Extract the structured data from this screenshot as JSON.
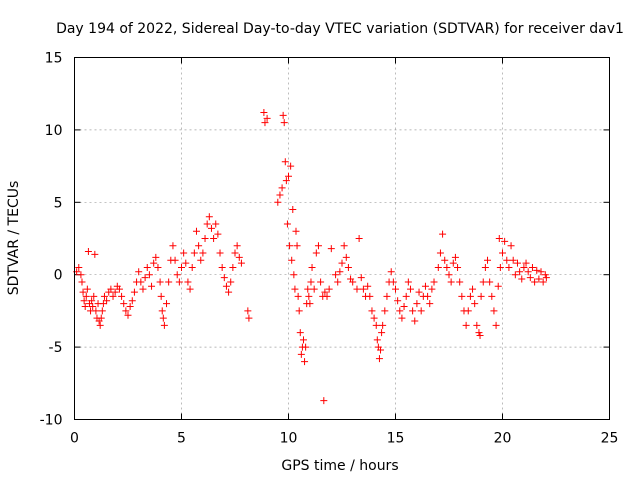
{
  "chart_data": {
    "type": "scatter",
    "title": "Day 194 of 2022, Sidereal Day-to-day VTEC variation (SDTVAR) for receiver dav1",
    "xlabel": "GPS time / hours",
    "ylabel": "SDTVAR / TECUs",
    "xlim": [
      0,
      25
    ],
    "ylim": [
      -10,
      15
    ],
    "xticks": [
      "0",
      "5",
      "10",
      "15",
      "20",
      "25"
    ],
    "yticks": [
      "-10",
      "-5",
      "0",
      "5",
      "10",
      "15"
    ],
    "grid": true,
    "marker": "+",
    "color": "#ff0000",
    "series": [
      {
        "name": "SDTVAR",
        "points": [
          [
            0.1,
            0.2
          ],
          [
            0.2,
            0.5
          ],
          [
            0.3,
            0.0
          ],
          [
            0.35,
            -0.5
          ],
          [
            0.4,
            -1.2
          ],
          [
            0.45,
            -1.8
          ],
          [
            0.5,
            -2.2
          ],
          [
            0.55,
            -1.5
          ],
          [
            0.6,
            -1.0
          ],
          [
            0.65,
            1.6
          ],
          [
            0.7,
            -2.0
          ],
          [
            0.75,
            -2.5
          ],
          [
            0.8,
            -1.8
          ],
          [
            0.85,
            -2.2
          ],
          [
            0.9,
            -1.5
          ],
          [
            0.95,
            1.4
          ],
          [
            1.0,
            -2.5
          ],
          [
            1.05,
            -3.0
          ],
          [
            1.1,
            -2.0
          ],
          [
            1.15,
            -3.2
          ],
          [
            1.2,
            -3.5
          ],
          [
            1.25,
            -3.0
          ],
          [
            1.3,
            -2.5
          ],
          [
            1.35,
            -2.0
          ],
          [
            1.4,
            -1.5
          ],
          [
            1.5,
            -1.8
          ],
          [
            1.6,
            -1.2
          ],
          [
            1.7,
            -1.0
          ],
          [
            1.8,
            -1.5
          ],
          [
            1.9,
            -1.2
          ],
          [
            2.0,
            -0.8
          ],
          [
            2.1,
            -1.0
          ],
          [
            2.2,
            -1.5
          ],
          [
            2.3,
            -2.0
          ],
          [
            2.4,
            -2.5
          ],
          [
            2.5,
            -2.8
          ],
          [
            2.6,
            -2.2
          ],
          [
            2.7,
            -1.8
          ],
          [
            2.8,
            -1.2
          ],
          [
            2.9,
            -0.5
          ],
          [
            3.0,
            0.2
          ],
          [
            3.1,
            -0.5
          ],
          [
            3.2,
            -1.0
          ],
          [
            3.3,
            -0.2
          ],
          [
            3.4,
            0.5
          ],
          [
            3.5,
            0.0
          ],
          [
            3.6,
            -0.8
          ],
          [
            3.7,
            0.8
          ],
          [
            3.8,
            1.2
          ],
          [
            3.9,
            0.5
          ],
          [
            4.0,
            -0.5
          ],
          [
            4.05,
            -1.5
          ],
          [
            4.1,
            -2.5
          ],
          [
            4.15,
            -3.0
          ],
          [
            4.2,
            -3.5
          ],
          [
            4.3,
            -2.0
          ],
          [
            4.4,
            -0.5
          ],
          [
            4.5,
            1.0
          ],
          [
            4.6,
            2.0
          ],
          [
            4.7,
            1.0
          ],
          [
            4.8,
            0.0
          ],
          [
            4.9,
            -0.5
          ],
          [
            5.0,
            0.5
          ],
          [
            5.1,
            1.5
          ],
          [
            5.2,
            0.8
          ],
          [
            5.3,
            -0.5
          ],
          [
            5.4,
            -1.0
          ],
          [
            5.5,
            0.5
          ],
          [
            5.6,
            1.5
          ],
          [
            5.7,
            3.0
          ],
          [
            5.8,
            2.0
          ],
          [
            5.9,
            1.0
          ],
          [
            6.0,
            1.5
          ],
          [
            6.1,
            2.5
          ],
          [
            6.2,
            3.5
          ],
          [
            6.3,
            4.0
          ],
          [
            6.4,
            3.2
          ],
          [
            6.5,
            2.5
          ],
          [
            6.6,
            3.5
          ],
          [
            6.7,
            2.8
          ],
          [
            6.8,
            1.5
          ],
          [
            6.9,
            0.5
          ],
          [
            7.0,
            -0.2
          ],
          [
            7.1,
            -0.8
          ],
          [
            7.2,
            -1.2
          ],
          [
            7.3,
            -0.5
          ],
          [
            7.4,
            0.5
          ],
          [
            7.5,
            1.5
          ],
          [
            7.6,
            2.0
          ],
          [
            7.7,
            1.2
          ],
          [
            7.8,
            0.8
          ],
          [
            8.1,
            -2.5
          ],
          [
            8.15,
            -3.0
          ],
          [
            8.85,
            11.2
          ],
          [
            8.9,
            10.5
          ],
          [
            9.0,
            10.8
          ],
          [
            9.5,
            5.0
          ],
          [
            9.6,
            5.5
          ],
          [
            9.7,
            6.0
          ],
          [
            9.75,
            11.0
          ],
          [
            9.8,
            10.5
          ],
          [
            9.85,
            7.8
          ],
          [
            9.9,
            6.5
          ],
          [
            9.95,
            3.5
          ],
          [
            10.0,
            6.8
          ],
          [
            10.05,
            2.0
          ],
          [
            10.1,
            7.5
          ],
          [
            10.15,
            1.0
          ],
          [
            10.2,
            4.5
          ],
          [
            10.25,
            0.0
          ],
          [
            10.3,
            -1.0
          ],
          [
            10.35,
            3.0
          ],
          [
            10.4,
            2.0
          ],
          [
            10.45,
            -1.5
          ],
          [
            10.5,
            -2.5
          ],
          [
            10.55,
            -4.0
          ],
          [
            10.6,
            -5.5
          ],
          [
            10.65,
            -5.0
          ],
          [
            10.7,
            -4.5
          ],
          [
            10.75,
            -6.0
          ],
          [
            10.8,
            -5.0
          ],
          [
            10.85,
            -2.0
          ],
          [
            10.9,
            -1.0
          ],
          [
            10.95,
            -1.5
          ],
          [
            11.0,
            -2.0
          ],
          [
            11.05,
            -0.5
          ],
          [
            11.1,
            0.5
          ],
          [
            11.2,
            -1.0
          ],
          [
            11.3,
            1.5
          ],
          [
            11.4,
            2.0
          ],
          [
            11.5,
            -0.5
          ],
          [
            11.6,
            -1.5
          ],
          [
            11.65,
            -8.7
          ],
          [
            11.7,
            -1.2
          ],
          [
            11.8,
            -1.5
          ],
          [
            11.9,
            -1.0
          ],
          [
            12.0,
            1.8
          ],
          [
            12.2,
            0.0
          ],
          [
            12.3,
            -0.5
          ],
          [
            12.4,
            0.2
          ],
          [
            12.5,
            0.8
          ],
          [
            12.6,
            2.0
          ],
          [
            12.7,
            1.2
          ],
          [
            12.8,
            0.5
          ],
          [
            12.9,
            -0.3
          ],
          [
            13.0,
            -0.5
          ],
          [
            13.2,
            -1.0
          ],
          [
            13.3,
            2.5
          ],
          [
            13.4,
            -0.2
          ],
          [
            13.5,
            -1.0
          ],
          [
            13.6,
            -1.5
          ],
          [
            13.7,
            -0.8
          ],
          [
            13.8,
            -1.5
          ],
          [
            13.9,
            -2.5
          ],
          [
            14.0,
            -3.0
          ],
          [
            14.1,
            -3.5
          ],
          [
            14.15,
            -4.5
          ],
          [
            14.2,
            -5.0
          ],
          [
            14.25,
            -5.8
          ],
          [
            14.3,
            -5.2
          ],
          [
            14.35,
            -4.0
          ],
          [
            14.4,
            -3.5
          ],
          [
            14.5,
            -2.5
          ],
          [
            14.6,
            -1.5
          ],
          [
            14.7,
            -0.5
          ],
          [
            14.8,
            0.2
          ],
          [
            14.9,
            -0.5
          ],
          [
            15.0,
            -1.0
          ],
          [
            15.1,
            -1.8
          ],
          [
            15.2,
            -2.5
          ],
          [
            15.3,
            -3.0
          ],
          [
            15.4,
            -2.2
          ],
          [
            15.5,
            -1.5
          ],
          [
            15.6,
            -0.5
          ],
          [
            15.7,
            -1.0
          ],
          [
            15.8,
            -2.5
          ],
          [
            15.9,
            -3.2
          ],
          [
            16.0,
            -2.0
          ],
          [
            16.1,
            -1.2
          ],
          [
            16.2,
            -2.5
          ],
          [
            16.3,
            -1.5
          ],
          [
            16.4,
            -0.8
          ],
          [
            16.5,
            -1.5
          ],
          [
            16.6,
            -2.0
          ],
          [
            16.7,
            -1.0
          ],
          [
            16.8,
            -0.5
          ],
          [
            17.0,
            0.5
          ],
          [
            17.1,
            1.5
          ],
          [
            17.2,
            2.8
          ],
          [
            17.3,
            1.0
          ],
          [
            17.4,
            0.5
          ],
          [
            17.5,
            0.0
          ],
          [
            17.6,
            -0.5
          ],
          [
            17.7,
            0.8
          ],
          [
            17.8,
            1.2
          ],
          [
            17.9,
            0.5
          ],
          [
            18.0,
            -0.5
          ],
          [
            18.1,
            -1.5
          ],
          [
            18.2,
            -2.5
          ],
          [
            18.3,
            -3.5
          ],
          [
            18.4,
            -2.5
          ],
          [
            18.5,
            -1.5
          ],
          [
            18.6,
            -1.0
          ],
          [
            18.7,
            -2.0
          ],
          [
            18.8,
            -3.5
          ],
          [
            18.9,
            -4.0
          ],
          [
            18.95,
            -4.2
          ],
          [
            19.0,
            -1.5
          ],
          [
            19.1,
            -0.5
          ],
          [
            19.2,
            0.5
          ],
          [
            19.3,
            1.0
          ],
          [
            19.4,
            -0.5
          ],
          [
            19.5,
            -1.5
          ],
          [
            19.6,
            -2.5
          ],
          [
            19.7,
            -3.5
          ],
          [
            19.8,
            -0.8
          ],
          [
            19.85,
            2.5
          ],
          [
            19.9,
            0.5
          ],
          [
            20.0,
            1.5
          ],
          [
            20.1,
            2.3
          ],
          [
            20.2,
            1.0
          ],
          [
            20.3,
            0.5
          ],
          [
            20.4,
            2.0
          ],
          [
            20.5,
            1.0
          ],
          [
            20.6,
            0.0
          ],
          [
            20.7,
            0.8
          ],
          [
            20.8,
            0.2
          ],
          [
            20.9,
            -0.3
          ],
          [
            21.0,
            0.5
          ],
          [
            21.1,
            0.8
          ],
          [
            21.2,
            0.2
          ],
          [
            21.3,
            -0.2
          ],
          [
            21.4,
            0.5
          ],
          [
            21.5,
            -0.5
          ],
          [
            21.6,
            0.3
          ],
          [
            21.7,
            -0.3
          ],
          [
            21.8,
            0.2
          ],
          [
            21.9,
            -0.5
          ],
          [
            22.0,
            0.0
          ],
          [
            22.05,
            -0.2
          ]
        ]
      }
    ]
  }
}
